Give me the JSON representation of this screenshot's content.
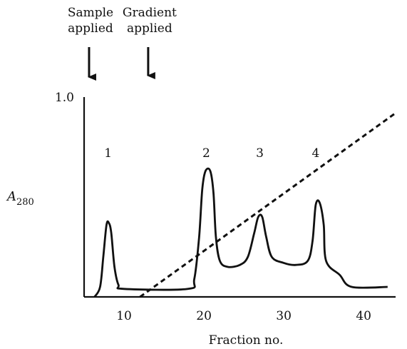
{
  "chart_data": {
    "type": "line",
    "xlabel": "Fraction no.",
    "ylabel_main": "A",
    "ylabel_sub": "280",
    "xlim": [
      5,
      44
    ],
    "ylim": [
      0,
      1.0
    ],
    "x_ticks": [
      10,
      20,
      30,
      40
    ],
    "y_ticks": [
      {
        "value": 1.0,
        "label": "1.0"
      }
    ],
    "annotations": [
      {
        "lines": [
          "Sample",
          "applied"
        ],
        "x": 5.8
      },
      {
        "lines": [
          "Gradient",
          "applied"
        ],
        "x": 13.2
      }
    ],
    "peak_labels": [
      {
        "label": "1",
        "x": 8.0,
        "y": 0.7
      },
      {
        "label": "2",
        "x": 20.3,
        "y": 0.7
      },
      {
        "label": "3",
        "x": 27.0,
        "y": 0.7
      },
      {
        "label": "4",
        "x": 34.0,
        "y": 0.7
      }
    ],
    "series": [
      {
        "style": "solid",
        "points": [
          [
            6.3,
            0.0
          ],
          [
            7.0,
            0.05
          ],
          [
            7.4,
            0.2
          ],
          [
            7.8,
            0.36
          ],
          [
            8.1,
            0.37
          ],
          [
            8.4,
            0.32
          ],
          [
            8.8,
            0.15
          ],
          [
            9.3,
            0.06
          ],
          [
            10.0,
            0.04
          ],
          [
            18.0,
            0.04
          ],
          [
            18.8,
            0.09
          ],
          [
            19.4,
            0.3
          ],
          [
            19.8,
            0.54
          ],
          [
            20.2,
            0.63
          ],
          [
            20.8,
            0.63
          ],
          [
            21.2,
            0.52
          ],
          [
            21.5,
            0.3
          ],
          [
            22.0,
            0.18
          ],
          [
            23.0,
            0.15
          ],
          [
            24.5,
            0.16
          ],
          [
            25.5,
            0.2
          ],
          [
            26.3,
            0.32
          ],
          [
            26.8,
            0.4
          ],
          [
            27.3,
            0.4
          ],
          [
            27.8,
            0.3
          ],
          [
            28.5,
            0.2
          ],
          [
            30.0,
            0.17
          ],
          [
            31.5,
            0.16
          ],
          [
            33.0,
            0.18
          ],
          [
            33.6,
            0.28
          ],
          [
            34.0,
            0.46
          ],
          [
            34.5,
            0.47
          ],
          [
            35.0,
            0.36
          ],
          [
            35.3,
            0.18
          ],
          [
            37.0,
            0.11
          ],
          [
            38.5,
            0.05
          ],
          [
            43.0,
            0.05
          ]
        ]
      },
      {
        "style": "dashed",
        "points": [
          [
            12.0,
            0.0
          ],
          [
            44.0,
            0.92
          ]
        ]
      }
    ],
    "grid": false,
    "legend": "none"
  }
}
